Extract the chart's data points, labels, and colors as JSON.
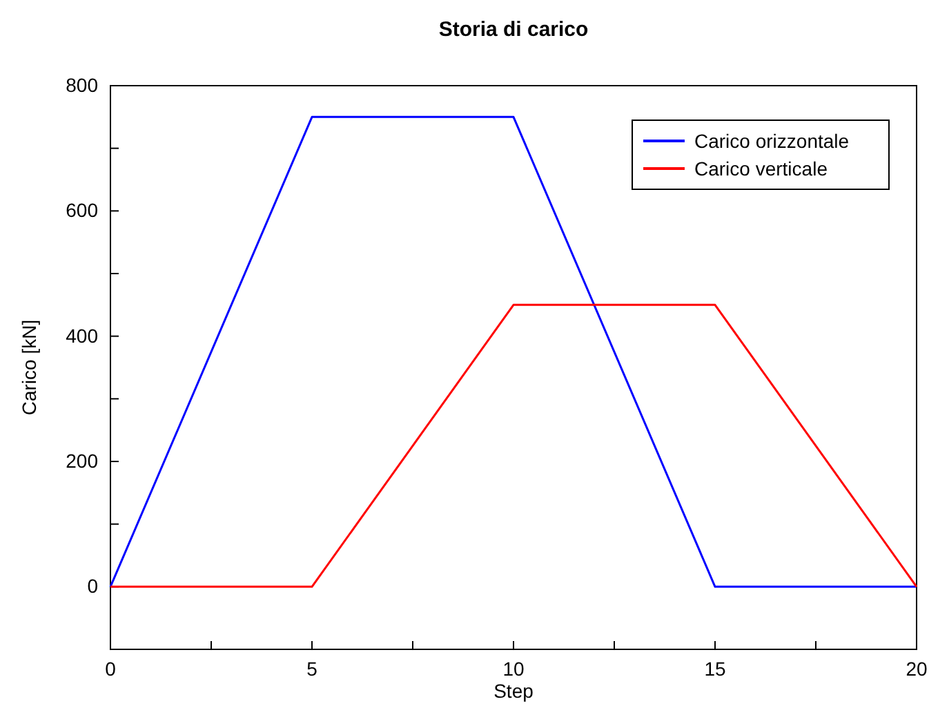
{
  "chart_data": {
    "type": "line",
    "title": "Storia  di  carico",
    "xlabel": "Step",
    "ylabel": "Carico  [kN]",
    "x": [
      0,
      5,
      10,
      15,
      20
    ],
    "series": [
      {
        "name": "Carico orizzontale",
        "color": "#0000ff",
        "values": [
          0,
          750,
          750,
          0,
          0
        ]
      },
      {
        "name": "Carico verticale",
        "color": "#ff0000",
        "values": [
          0,
          0,
          450,
          450,
          0
        ]
      }
    ],
    "xlim": [
      0,
      20
    ],
    "ylim": [
      -100,
      800
    ],
    "xticks": [
      0,
      {
        "value": 2.5,
        "label": null
      },
      5,
      {
        "value": 7.5,
        "label": null
      },
      10,
      {
        "value": 12.5,
        "label": null
      },
      15,
      {
        "value": 17.5,
        "label": null
      },
      20
    ],
    "yticks": [
      0,
      {
        "value": 100,
        "label": null
      },
      200,
      {
        "value": 300,
        "label": null
      },
      400,
      {
        "value": 500,
        "label": null
      },
      600,
      {
        "value": 700,
        "label": null
      },
      800
    ],
    "grid": false,
    "legend": "top right",
    "marker": "none",
    "line_style": "solid"
  }
}
